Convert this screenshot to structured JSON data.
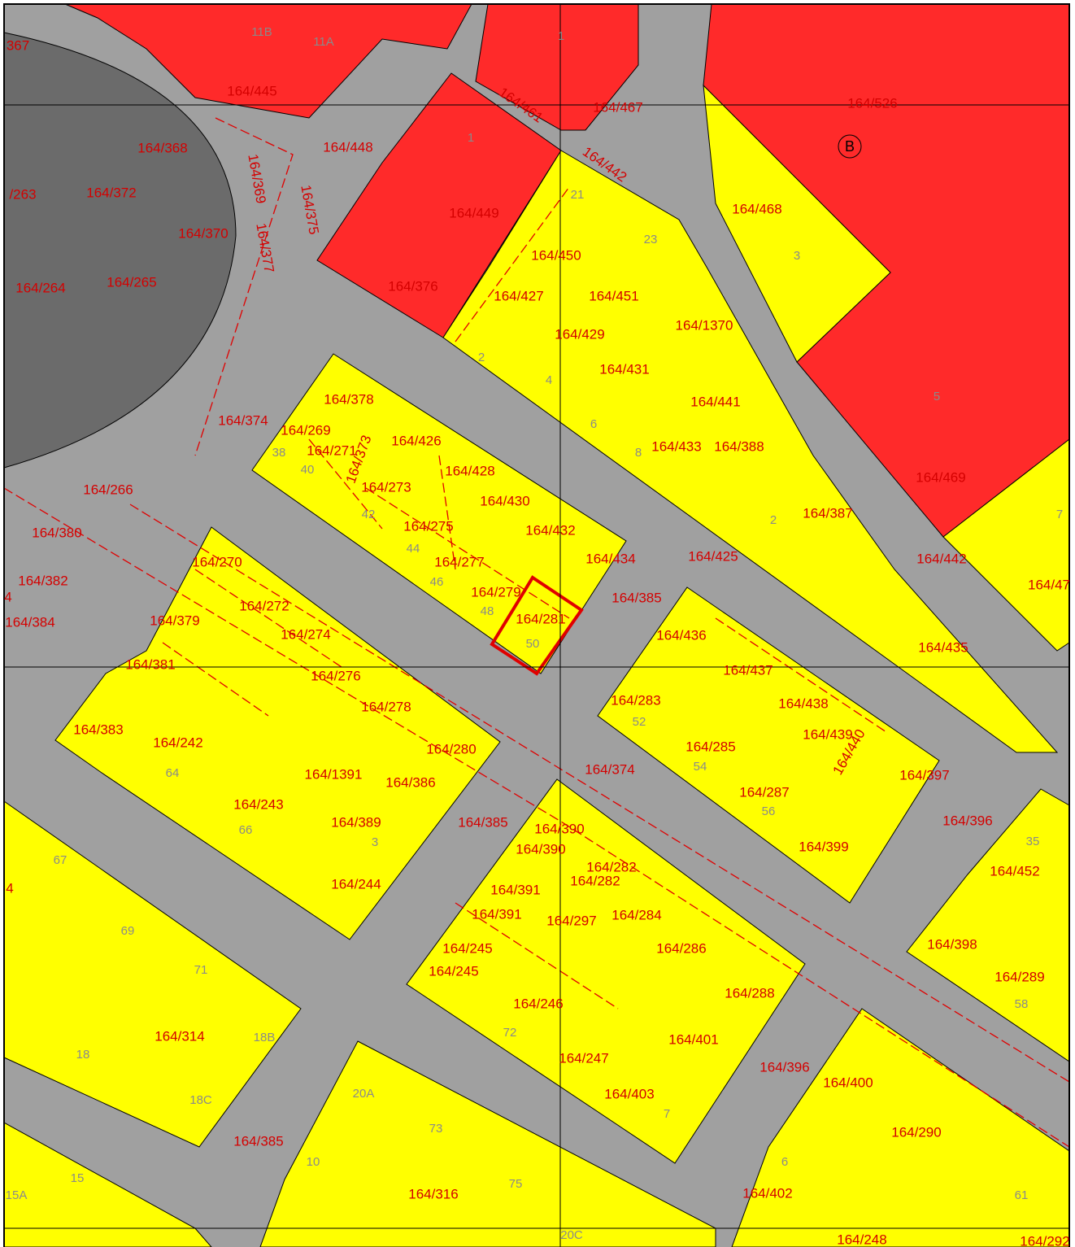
{
  "parcels": [
    "367",
    "164/445",
    "164/368",
    "164/372",
    "/263",
    "164/370",
    "164/369",
    "164/377",
    "164/375",
    "164/448",
    "164/264",
    "164/265",
    "164/449",
    "164/461",
    "164/467",
    "164/442",
    "164/526",
    "164/468",
    "164/450",
    "164/376",
    "164/427",
    "164/451",
    "164/429",
    "164/1370",
    "164/431",
    "164/441",
    "164/378",
    "164/374",
    "164/269",
    "164/271",
    "164/373",
    "164/426",
    "164/428",
    "164/433",
    "164/388",
    "164/273",
    "164/430",
    "164/266",
    "164/380",
    "164/387",
    "164/469",
    "164/275",
    "164/432",
    "164/434",
    "164/425",
    "164/442",
    "164/47",
    "164/277",
    "164/270",
    "164/382",
    "4",
    "164/279",
    "164/385",
    "164/281",
    "164/272",
    "164/379",
    "164/384",
    "164/274",
    "164/436",
    "164/435",
    "164/381",
    "164/276",
    "164/437",
    "164/283",
    "164/438",
    "164/278",
    "164/383",
    "164/439",
    "164/440",
    "164/242",
    "164/280",
    "164/285",
    "164/374",
    "164/397",
    "164/1391",
    "164/386",
    "164/287",
    "164/243",
    "164/385",
    "164/389",
    "164/396",
    "164/390",
    "164/390",
    "164/399",
    "164/282",
    "164/282",
    "164/452",
    "164/244",
    "4",
    "164/391",
    "164/391",
    "164/297",
    "164/284",
    "164/398",
    "164/286",
    "164/245",
    "164/245",
    "164/289",
    "164/288",
    "164/246",
    "164/314",
    "164/401",
    "164/247",
    "164/396",
    "164/400",
    "164/403",
    "164/290",
    "164/385",
    "164/316",
    "164/402",
    "164/248",
    "164/292"
  ],
  "house_numbers": [
    "11B",
    "11A",
    "1",
    "1",
    "21",
    "23",
    "3",
    "2",
    "4",
    "6",
    "8",
    "38",
    "40",
    "42",
    "44",
    "46",
    "48",
    "50",
    "2",
    "5",
    "7",
    "52",
    "54",
    "56",
    "64",
    "66",
    "3",
    "67",
    "35",
    "69",
    "71",
    "58",
    "72",
    "18B",
    "18",
    "18C",
    "20A",
    "73",
    "7",
    "10",
    "6",
    "15",
    "15A",
    "75",
    "61",
    "20C"
  ],
  "marker": "B"
}
